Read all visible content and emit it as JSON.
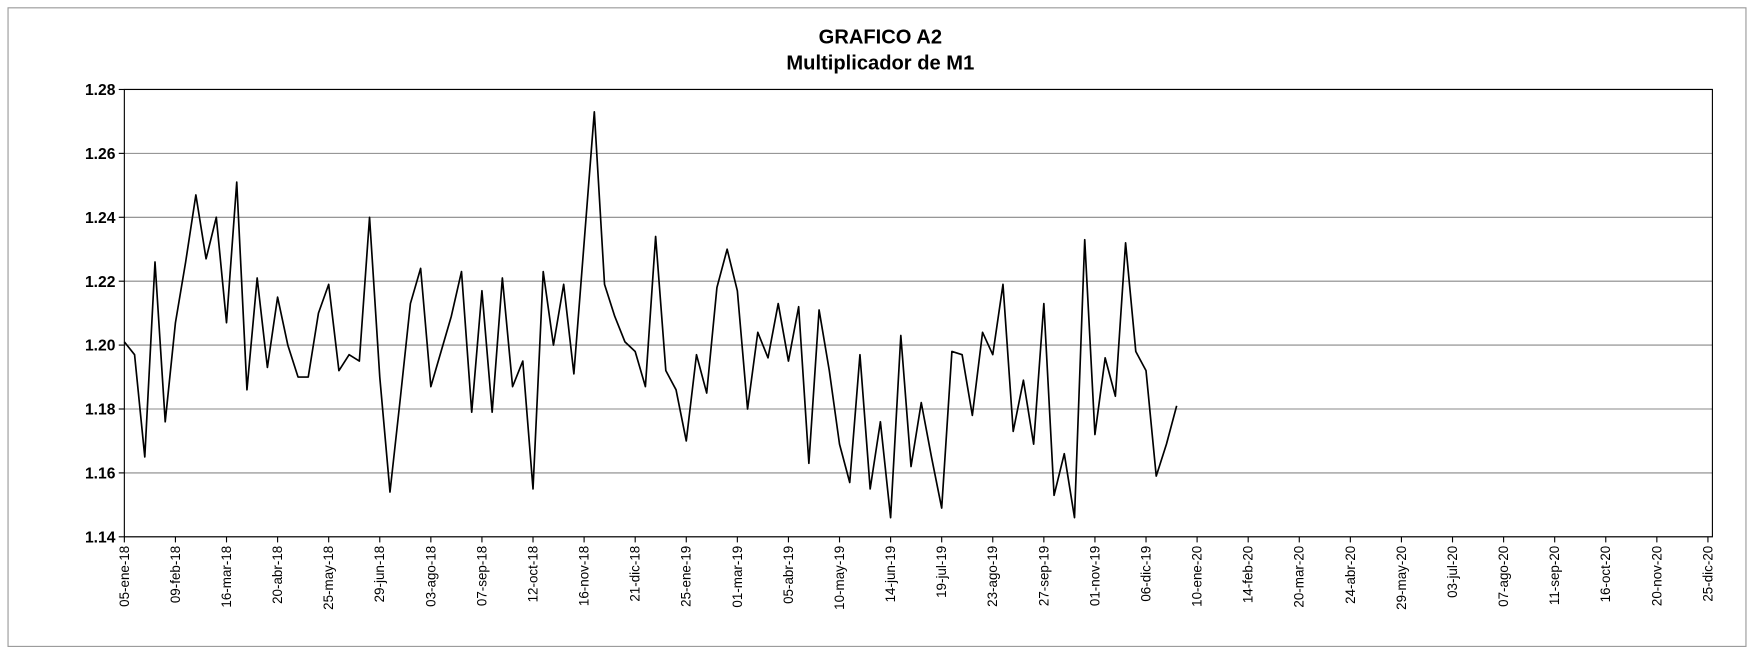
{
  "chart_data": {
    "type": "line",
    "title": "GRAFICO A2",
    "subtitle": "Multiplicador de M1",
    "categories": [
      "05-ene-18",
      null,
      null,
      null,
      null,
      "09-feb-18",
      null,
      null,
      null,
      null,
      "16-mar-18",
      null,
      null,
      null,
      null,
      "20-abr-18",
      null,
      null,
      null,
      null,
      "25-may-18",
      null,
      null,
      null,
      null,
      "29-jun-18",
      null,
      null,
      null,
      null,
      "03-ago-18",
      null,
      null,
      null,
      null,
      "07-sep-18",
      null,
      null,
      null,
      null,
      "12-oct-18",
      null,
      null,
      null,
      null,
      "16-nov-18",
      null,
      null,
      null,
      null,
      "21-dic-18",
      null,
      null,
      null,
      null,
      "25-ene-19",
      null,
      null,
      null,
      null,
      "01-mar-19",
      null,
      null,
      null,
      null,
      "05-abr-19",
      null,
      null,
      null,
      null,
      "10-may-19",
      null,
      null,
      null,
      null,
      "14-jun-19",
      null,
      null,
      null,
      null,
      "19-jul-19",
      null,
      null,
      null,
      null,
      "23-ago-19",
      null,
      null,
      null,
      null,
      "27-sep-19",
      null,
      null,
      null,
      null,
      "01-nov-19",
      null,
      null,
      null,
      null,
      "06-dic-19",
      null,
      null,
      null,
      null,
      "10-ene-20",
      null,
      null,
      null,
      null,
      "14-feb-20",
      null,
      null,
      null,
      null,
      "20-mar-20",
      null,
      null,
      null,
      null,
      "24-abr-20",
      null,
      null,
      null,
      null,
      "29-may-20",
      null,
      null,
      null,
      null,
      "03-jul-20",
      null,
      null,
      null,
      null,
      "07-ago-20",
      null,
      null,
      null,
      null,
      "11-sep-20",
      null,
      null,
      null,
      null,
      "16-oct-20",
      null,
      null,
      null,
      null,
      "20-nov-20",
      null,
      null,
      null,
      null,
      "25-dic-20"
    ],
    "values": [
      1.201,
      1.197,
      1.165,
      1.226,
      1.176,
      1.207,
      1.226,
      1.247,
      1.227,
      1.24,
      1.207,
      1.251,
      1.186,
      1.221,
      1.193,
      1.215,
      1.2,
      1.19,
      1.19,
      1.21,
      1.219,
      1.192,
      1.197,
      1.195,
      1.24,
      1.19,
      1.154,
      1.183,
      1.213,
      1.224,
      1.187,
      1.198,
      1.209,
      1.223,
      1.179,
      1.217,
      1.179,
      1.221,
      1.187,
      1.195,
      1.155,
      1.223,
      1.2,
      1.219,
      1.191,
      1.232,
      1.273,
      1.219,
      1.209,
      1.201,
      1.198,
      1.187,
      1.234,
      1.192,
      1.186,
      1.17,
      1.197,
      1.185,
      1.218,
      1.23,
      1.217,
      1.18,
      1.204,
      1.196,
      1.213,
      1.195,
      1.212,
      1.163,
      1.211,
      1.192,
      1.169,
      1.157,
      1.197,
      1.155,
      1.176,
      1.146,
      1.203,
      1.162,
      1.182,
      1.165,
      1.149,
      1.198,
      1.197,
      1.178,
      1.204,
      1.197,
      1.219,
      1.173,
      1.189,
      1.169,
      1.213,
      1.153,
      1.166,
      1.146,
      1.233,
      1.172,
      1.196,
      1.184,
      1.232,
      1.198,
      1.192,
      1.159,
      1.169,
      1.181,
      null,
      null,
      null,
      null,
      null,
      null,
      null,
      null,
      null,
      null,
      null,
      null,
      null,
      null,
      null,
      null,
      null,
      null,
      null,
      null,
      null,
      null,
      null,
      null,
      null,
      null,
      null,
      null,
      null,
      null,
      null,
      null,
      null,
      null,
      null,
      null,
      null,
      null,
      null,
      null,
      null,
      null,
      null,
      null,
      null,
      null,
      null,
      null,
      null,
      null,
      null,
      null
    ],
    "color": "#000000",
    "ylim": [
      1.14,
      1.28
    ],
    "yticks": [
      1.14,
      1.16,
      1.18,
      {
        "value": 1.2,
        "label": "1.20"
      },
      1.22,
      1.24,
      1.26,
      1.28
    ],
    "grid": true
  }
}
